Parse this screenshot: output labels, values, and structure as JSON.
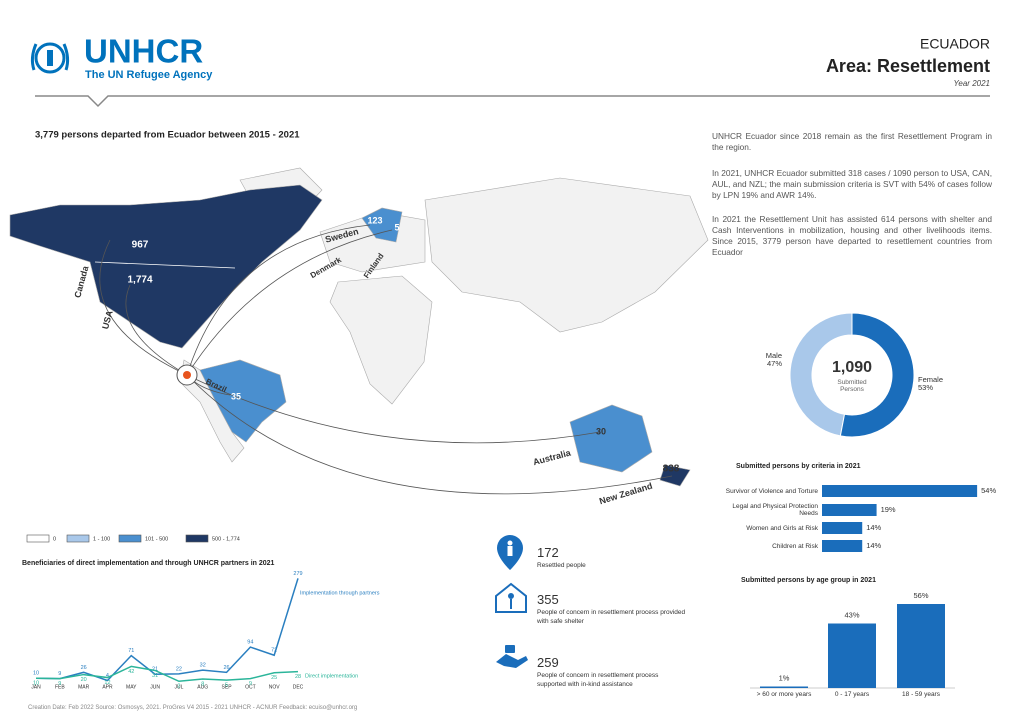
{
  "header": {
    "logo": "UNHCR",
    "tagline": "The UN Refugee Agency",
    "country": "ECUADOR",
    "title": "Area: Resettlement",
    "year": "Year 2021"
  },
  "map": {
    "title": "3,779 persons departed from Ecuador between 2015 - 2021",
    "labels": [
      "Canada",
      "USA",
      "967",
      "1,774",
      "Sweden",
      "123",
      "5",
      "Denmark",
      "Finland",
      "Brazil",
      "35",
      "Australia",
      "30",
      "New Zealand",
      "838"
    ],
    "legend": [
      {
        "label": "0",
        "color": "#ffffff"
      },
      {
        "label": "1 - 100",
        "color": "#a9c8ea"
      },
      {
        "label": "101 - 500",
        "color": "#4a8fcf"
      },
      {
        "label": "500 - 1,774",
        "color": "#1f3864"
      }
    ]
  },
  "text": [
    "UNHCR Ecuador since 2018 remain as the first Resettlement Program in the region.",
    "In 2021, UNHCR Ecuador submitted 318 cases / 1090 person to USA, CAN, AUL, and NZL; the main submission criteria is SVT with 54% of cases follow by LPN 19% and AWR 14%.",
    "In 2021 the Resettlement Unit has assisted 614 persons with shelter and Cash Interventions in mobilization, housing and other livelihoods items. Since 2015, 3779 person have departed to resettlement countries from Ecuador"
  ],
  "stats": [
    {
      "value": "172",
      "label": "Resettled people"
    },
    {
      "value": "355",
      "label": "People of concern in resettlement process provided with safe shelter"
    },
    {
      "value": "259",
      "label": "People of concern in resettlement process supported with in-kind assistance"
    }
  ],
  "chart_data": [
    {
      "type": "pie",
      "center_value": "1,090",
      "center_label": "Submitted Persons",
      "categories": [
        "Male",
        "Female"
      ],
      "values": [
        47,
        53
      ],
      "value_labels": [
        "47%",
        "53%"
      ],
      "colors": [
        "#a9c8ea",
        "#1a6dbb"
      ]
    },
    {
      "type": "hbar",
      "title": "Submitted persons by criteria in 2021",
      "categories": [
        "Survivor of Violence and Torture",
        "Legal and Physical Protection Needs",
        "Women and Girls at Risk",
        "Children at Risk"
      ],
      "values": [
        54,
        19,
        14,
        14
      ],
      "value_labels": [
        "54%",
        "19%",
        "14%",
        "14%"
      ],
      "color": "#1a6dbb",
      "xlim": [
        0,
        55
      ]
    },
    {
      "type": "bar",
      "title": "Submitted persons by age group in 2021",
      "categories": [
        "> 60 or more years",
        "0 - 17 years",
        "18 - 59 years"
      ],
      "values": [
        1,
        43,
        56
      ],
      "value_labels": [
        "1%",
        "43%",
        "56%"
      ],
      "color": "#1a6dbb",
      "ylim": [
        0,
        56
      ]
    },
    {
      "type": "line",
      "title": "Beneficiaries of direct implementation and through UNHCR partners in 2021",
      "categories": [
        "JAN",
        "FEB",
        "MAR",
        "APR",
        "MAY",
        "JUN",
        "JUL",
        "AUG",
        "SEP",
        "OCT",
        "NOV",
        "DEC"
      ],
      "series": [
        {
          "name": "Implementation through partners",
          "color": "#2a7fc0",
          "values": [
            10,
            9,
            26,
            4,
            71,
            21,
            22,
            32,
            26,
            94,
            72,
            279
          ]
        },
        {
          "name": "Direct implementation",
          "color": "#2bb59a",
          "values": [
            10,
            9,
            20,
            12,
            42,
            31,
            2,
            8,
            5,
            9,
            25,
            28
          ]
        }
      ],
      "ylim": [
        0,
        280
      ]
    }
  ],
  "footer": "Creation Date: Feb 2022   Source: Osmosys, 2021. ProGres V4 2015 - 2021 UNHCR - ACNUR Feedback: ecuiso@unhcr.org"
}
